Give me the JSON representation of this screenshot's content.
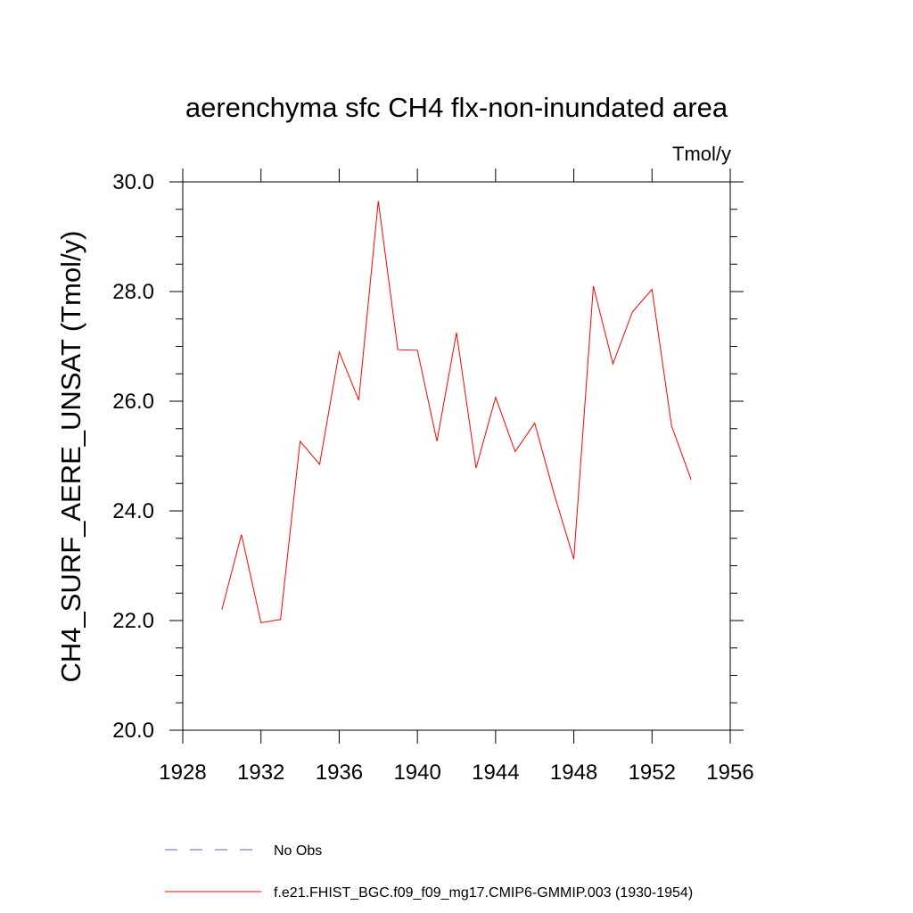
{
  "chart_data": {
    "type": "line",
    "title": "aerenchyma sfc CH4 flx-non-inundated area",
    "units_label": "Tmol/y",
    "ylabel": "CH4_SURF_AERE_UNSAT  (Tmol/y)",
    "xlabel": "",
    "xlim": [
      1928,
      1956
    ],
    "ylim": [
      20.0,
      30.0
    ],
    "x_ticks": [
      1928,
      1932,
      1936,
      1940,
      1944,
      1948,
      1952,
      1956
    ],
    "x_tick_labels": [
      "1928",
      "1932",
      "1936",
      "1940",
      "1944",
      "1948",
      "1952",
      "1956"
    ],
    "y_ticks": [
      20.0,
      22.0,
      24.0,
      26.0,
      28.0,
      30.0
    ],
    "y_tick_labels": [
      "20.0",
      "22.0",
      "24.0",
      "26.0",
      "28.0",
      "30.0"
    ],
    "grid": false,
    "legend_position": "bottom",
    "legend": [
      {
        "name": "No Obs",
        "style": "dashed",
        "color": "#6a5acd"
      },
      {
        "name": "f.e21.FHIST_BGC.f09_f09_mg17.CMIP6-GMMIP.003 (1930-1954)",
        "style": "solid",
        "color": "#ff0000"
      }
    ],
    "series": [
      {
        "name": "f.e21.FHIST_BGC.f09_f09_mg17.CMIP6-GMMIP.003 (1930-1954)",
        "color": "#ff0000",
        "x": [
          1930,
          1931,
          1932,
          1933,
          1934,
          1935,
          1936,
          1937,
          1938,
          1939,
          1940,
          1941,
          1942,
          1943,
          1944,
          1945,
          1946,
          1947,
          1948,
          1949,
          1950,
          1951,
          1952,
          1953,
          1954
        ],
        "values": [
          22.2,
          23.57,
          21.96,
          22.02,
          25.27,
          24.85,
          26.9,
          26.02,
          29.65,
          26.94,
          26.93,
          25.27,
          27.25,
          24.78,
          26.07,
          25.08,
          25.6,
          24.3,
          23.12,
          28.1,
          26.68,
          27.63,
          28.04,
          25.55,
          24.57
        ]
      }
    ]
  }
}
